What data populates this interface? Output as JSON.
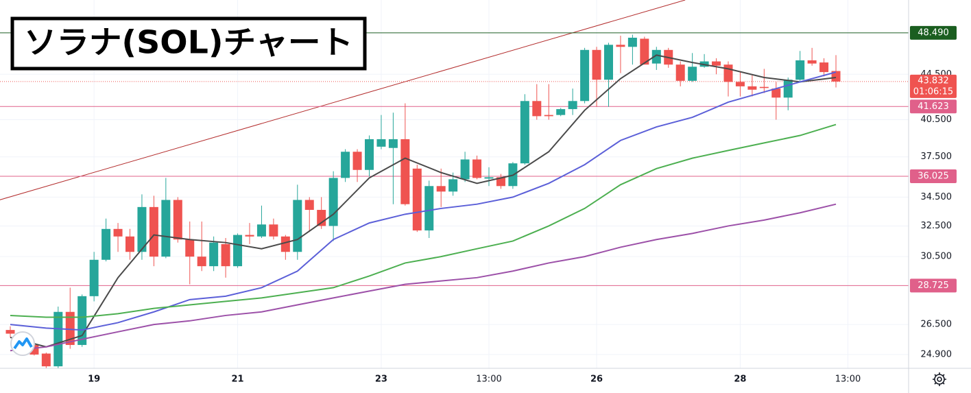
{
  "chart_data": {
    "type": "candlestick",
    "title": "ソラナ(SOL)チャート",
    "categories": [
      null,
      null,
      null,
      null,
      null,
      null,
      null,
      "19",
      null,
      null,
      null,
      null,
      null,
      null,
      null,
      null,
      null,
      null,
      null,
      "21",
      null,
      null,
      null,
      null,
      null,
      null,
      null,
      null,
      null,
      null,
      null,
      "23",
      null,
      null,
      null,
      null,
      null,
      null,
      null,
      null,
      "13:00",
      null,
      null,
      null,
      null,
      null,
      null,
      null,
      null,
      "26",
      null,
      null,
      null,
      null,
      null,
      null,
      null,
      null,
      null,
      null,
      null,
      "28",
      null,
      null,
      null,
      null,
      null,
      null,
      null,
      null,
      "13:00"
    ],
    "open": [
      26.2,
      25.9,
      25.4,
      24.95,
      24.3,
      27.2,
      25.4,
      28.1,
      30.3,
      32.3,
      31.8,
      30.8,
      33.8,
      30.5,
      34.3,
      31.6,
      30.5,
      29.9,
      31.3,
      29.9,
      31.9,
      31.8,
      32.6,
      31.8,
      30.8,
      34.3,
      33.6,
      32.5,
      35.9,
      37.9,
      36.5,
      38.3,
      38.2,
      38.9,
      36.6,
      32.2,
      35.3,
      34.9,
      35.8,
      37.3,
      35.85,
      35.95,
      35.3,
      37.0,
      42.1,
      40.9,
      40.9,
      41.4,
      42.1,
      46.8,
      44.0,
      47.3,
      47.1,
      47.9,
      45.5,
      46.8,
      45.4,
      43.9,
      45.2,
      45.7,
      45.4,
      43.8,
      43.4,
      43.35,
      43.2,
      42.4,
      44.0,
      45.8,
      45.6,
      44.8,
      null
    ],
    "high": [
      26.4,
      26.0,
      25.6,
      25.0,
      27.5,
      28.6,
      28.2,
      30.8,
      33.0,
      32.7,
      32.3,
      34.7,
      34.6,
      35.9,
      34.5,
      32.8,
      32.8,
      31.8,
      31.7,
      32.0,
      32.7,
      33.9,
      33.0,
      31.9,
      35.4,
      34.5,
      34.5,
      36.4,
      38.1,
      38.1,
      39.2,
      40.9,
      41.1,
      41.9,
      36.9,
      35.7,
      36.6,
      36.3,
      37.9,
      37.6,
      36.7,
      36.2,
      37.1,
      42.7,
      43.6,
      43.6,
      41.5,
      43.2,
      47.0,
      47.1,
      47.5,
      48.2,
      48.3,
      48.1,
      47.1,
      47.0,
      45.7,
      46.5,
      46.4,
      46.0,
      45.7,
      44.7,
      44.4,
      45.0,
      43.8,
      44.2,
      46.7,
      47.0,
      46.0,
      46.3,
      null
    ],
    "low": [
      25.8,
      25.5,
      24.85,
      24.2,
      24.2,
      25.2,
      25.3,
      27.8,
      30.2,
      30.8,
      30.3,
      30.3,
      29.9,
      30.4,
      31.4,
      28.8,
      29.6,
      29.6,
      29.2,
      29.8,
      31.3,
      31.7,
      31.6,
      30.3,
      30.3,
      32.1,
      32.3,
      31.5,
      35.6,
      35.6,
      36.0,
      38.1,
      34.0,
      33.9,
      32.1,
      31.7,
      33.8,
      34.6,
      35.6,
      35.8,
      35.3,
      35.1,
      35.1,
      36.9,
      40.5,
      40.5,
      40.8,
      40.9,
      41.9,
      41.6,
      41.6,
      44.6,
      45.4,
      45.4,
      44.9,
      45.1,
      43.4,
      43.8,
      45.1,
      44.5,
      42.5,
      42.5,
      42.5,
      42.8,
      40.5,
      41.3,
      43.9,
      45.3,
      44.3,
      43.3,
      null
    ],
    "close": [
      26.0,
      25.6,
      24.9,
      24.3,
      27.2,
      25.4,
      28.1,
      30.3,
      32.3,
      31.8,
      30.8,
      33.8,
      30.5,
      34.3,
      31.6,
      30.5,
      29.9,
      31.4,
      29.9,
      31.9,
      31.8,
      32.6,
      31.8,
      30.8,
      34.3,
      33.6,
      32.5,
      35.9,
      37.9,
      36.5,
      38.9,
      38.9,
      38.9,
      34.0,
      32.2,
      35.3,
      34.9,
      35.8,
      37.3,
      35.9,
      35.95,
      35.3,
      37.0,
      42.1,
      40.8,
      40.8,
      41.4,
      42.1,
      46.8,
      44.0,
      47.3,
      47.1,
      48.0,
      45.4,
      46.8,
      45.4,
      43.9,
      45.2,
      45.7,
      45.3,
      43.8,
      43.4,
      43.1,
      43.25,
      42.4,
      44.0,
      45.8,
      45.5,
      44.7,
      43.832,
      null
    ],
    "up_color": "#26a69a",
    "down_color": "#ef5350",
    "ylim": [
      24.2,
      51.9
    ],
    "log_scale": true,
    "yticks": [
      {
        "value": 24.9,
        "label": "24.900"
      },
      {
        "value": 26.5,
        "label": "26.500"
      },
      {
        "value": 30.5,
        "label": "30.500"
      },
      {
        "value": 32.5,
        "label": "32.500"
      },
      {
        "value": 34.5,
        "label": "34.500"
      },
      {
        "value": 37.5,
        "label": "37.500"
      },
      {
        "value": 40.5,
        "label": "40.500"
      },
      {
        "value": 44.5,
        "label": "44.500"
      }
    ],
    "grid": true,
    "lines": [
      {
        "color": "#4a4a4a",
        "x": [
          0,
          3,
          6,
          9,
          12,
          15,
          18,
          21,
          24,
          27,
          30,
          33,
          36,
          39,
          42,
          45,
          48,
          51,
          54,
          57,
          60,
          63,
          66,
          69
        ],
        "values": [
          25.8,
          25.3,
          25.9,
          29.2,
          31.9,
          31.6,
          31.4,
          31.0,
          31.6,
          33.3,
          35.9,
          37.4,
          36.3,
          35.5,
          36.1,
          37.9,
          41.3,
          44.1,
          46.3,
          45.6,
          45.0,
          44.2,
          43.8,
          44.2
        ]
      },
      {
        "color": "#5b5fd8",
        "x": [
          0,
          3,
          6,
          9,
          12,
          15,
          18,
          21,
          24,
          27,
          30,
          33,
          36,
          39,
          42,
          45,
          48,
          51,
          54,
          57,
          60,
          63,
          66,
          69
        ],
        "values": [
          26.5,
          26.3,
          26.2,
          26.6,
          27.2,
          27.9,
          28.1,
          28.6,
          29.6,
          31.6,
          32.7,
          33.3,
          33.7,
          34.0,
          34.5,
          35.5,
          36.9,
          38.8,
          39.9,
          40.7,
          42.0,
          42.9,
          43.8,
          44.7
        ]
      },
      {
        "color": "#4caf50",
        "x": [
          0,
          3,
          6,
          9,
          12,
          15,
          18,
          21,
          24,
          27,
          30,
          33,
          36,
          39,
          42,
          45,
          48,
          51,
          54,
          57,
          60,
          63,
          66,
          69
        ],
        "values": [
          27.0,
          26.9,
          26.9,
          27.1,
          27.4,
          27.6,
          27.8,
          28.0,
          28.3,
          28.6,
          29.3,
          30.1,
          30.5,
          31.0,
          31.5,
          32.5,
          33.7,
          35.4,
          36.6,
          37.4,
          38.0,
          38.6,
          39.2,
          40.1
        ]
      },
      {
        "color": "#9c50a8",
        "x": [
          0,
          3,
          6,
          9,
          12,
          15,
          18,
          21,
          24,
          27,
          30,
          33,
          36,
          39,
          42,
          45,
          48,
          51,
          54,
          57,
          60,
          63,
          66,
          69
        ],
        "values": [
          25.1,
          25.3,
          25.7,
          26.1,
          26.5,
          26.7,
          27.0,
          27.2,
          27.6,
          28.0,
          28.4,
          28.8,
          29.0,
          29.2,
          29.6,
          30.1,
          30.5,
          31.1,
          31.6,
          32.0,
          32.5,
          32.9,
          33.4,
          34.0
        ]
      }
    ],
    "trendline": {
      "color": "#b22a2a",
      "x": [
        -0.9,
        56.4
      ],
      "values": [
        34.3,
        51.9
      ]
    },
    "levels": [
      {
        "value": 48.49,
        "label": "48.490",
        "color": "#1b5e20"
      },
      {
        "value": 41.623,
        "label": "41.623",
        "color": "#e0608a"
      },
      {
        "value": 36.025,
        "label": "36.025",
        "color": "#e0608a"
      },
      {
        "value": 28.725,
        "label": "28.725",
        "color": "#e0608a"
      }
    ],
    "last_price": 43.832,
    "countdown": "01:06:15",
    "last_color": "#ef5350"
  }
}
